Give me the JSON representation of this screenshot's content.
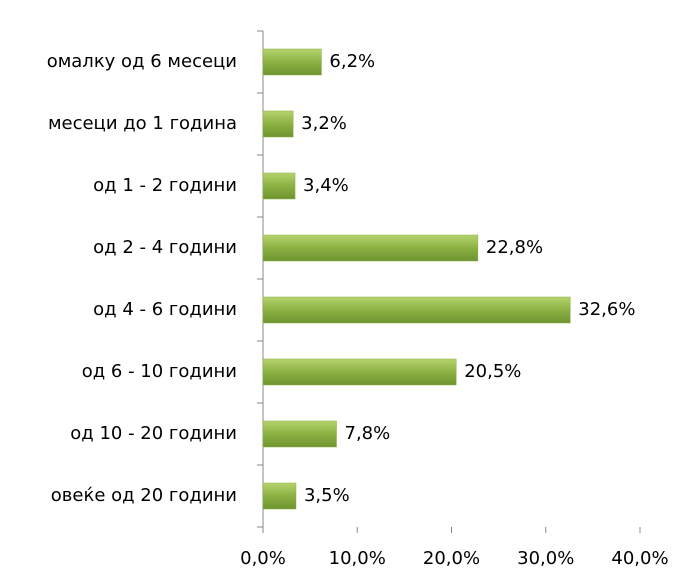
{
  "chart_data": {
    "type": "barh",
    "categories": [
      "омалку од 6 месеци",
      "месеци до 1 година",
      "од 1 - 2 години",
      "од 2 - 4 години",
      "од 4 - 6 години",
      "од 6 - 10 години",
      "од 10 - 20 години",
      "овеќе од 20 години"
    ],
    "values": [
      6.2,
      3.2,
      3.4,
      22.8,
      32.6,
      20.5,
      7.8,
      3.5
    ],
    "value_labels": [
      "6,2%",
      "3,2%",
      "3,4%",
      "22,8%",
      "32,6%",
      "20,5%",
      "7,8%",
      "3,5%"
    ],
    "color": "#8cb042",
    "xlim": [
      0,
      40
    ],
    "xticks": [
      {
        "value": 0,
        "label": "0,0%"
      },
      {
        "value": 10,
        "label": "10,0%"
      },
      {
        "value": 20,
        "label": "20,0%"
      },
      {
        "value": 30,
        "label": "30,0%"
      },
      {
        "value": 40,
        "label": "40,0%"
      }
    ],
    "grid": false
  }
}
